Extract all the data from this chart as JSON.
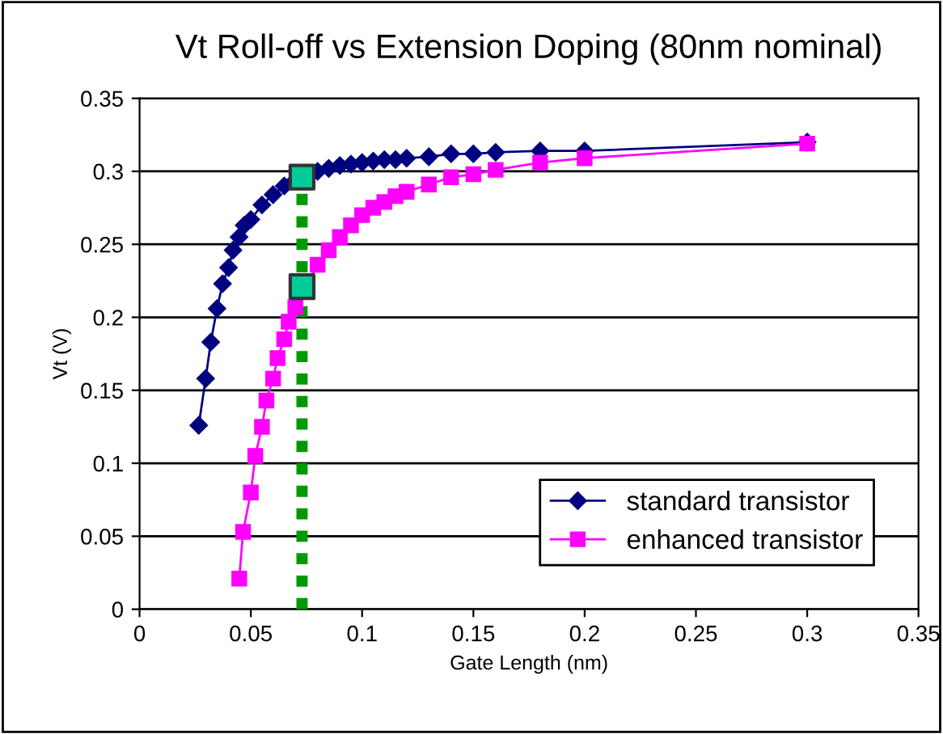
{
  "chart_data": {
    "type": "line",
    "title": "Vt Roll-off vs Extension Doping (80nm nominal)",
    "xlabel": "Gate Length (nm)",
    "ylabel": "Vt (V)",
    "xlim": [
      0,
      0.35
    ],
    "xticks": [
      0,
      0.05,
      0.1,
      0.15,
      0.2,
      0.25,
      0.3,
      0.35
    ],
    "ylim": [
      0,
      0.35
    ],
    "yticks": [
      0,
      0.05,
      0.1,
      0.15,
      0.2,
      0.25,
      0.3,
      0.35
    ],
    "grid": "y",
    "legend": "bottom right",
    "series": [
      {
        "name": "standard transistor",
        "color": "#000080",
        "marker": "diamond",
        "line_style": "solid",
        "x": [
          0.0266,
          0.0297,
          0.032,
          0.0348,
          0.0373,
          0.04,
          0.042,
          0.0447,
          0.047,
          0.05,
          0.055,
          0.06,
          0.065,
          0.07,
          0.075,
          0.08,
          0.085,
          0.09,
          0.095,
          0.1,
          0.105,
          0.11,
          0.115,
          0.12,
          0.13,
          0.14,
          0.15,
          0.16,
          0.18,
          0.2,
          0.3
        ],
        "values": [
          0.126,
          0.158,
          0.183,
          0.206,
          0.223,
          0.234,
          0.246,
          0.255,
          0.263,
          0.267,
          0.277,
          0.284,
          0.29,
          0.294,
          0.298,
          0.3,
          0.302,
          0.304,
          0.305,
          0.306,
          0.307,
          0.308,
          0.308,
          0.309,
          0.31,
          0.312,
          0.312,
          0.313,
          0.314,
          0.314,
          0.32
        ]
      },
      {
        "name": "enhanced transistor",
        "color": "#ff00ff",
        "marker": "square",
        "line_style": "solid",
        "x": [
          0.0448,
          0.0465,
          0.05,
          0.052,
          0.055,
          0.057,
          0.06,
          0.062,
          0.065,
          0.067,
          0.07,
          0.08,
          0.085,
          0.09,
          0.095,
          0.1,
          0.105,
          0.11,
          0.115,
          0.12,
          0.13,
          0.14,
          0.15,
          0.16,
          0.18,
          0.2,
          0.3
        ],
        "values": [
          0.021,
          0.053,
          0.08,
          0.105,
          0.125,
          0.143,
          0.158,
          0.172,
          0.185,
          0.197,
          0.207,
          0.236,
          0.246,
          0.255,
          0.263,
          0.27,
          0.275,
          0.279,
          0.283,
          0.286,
          0.291,
          0.296,
          0.298,
          0.301,
          0.306,
          0.309,
          0.319
        ]
      },
      {
        "type": "line",
        "color": "#009900",
        "marker": "none",
        "line_style": "dotted",
        "x": [
          0.073,
          0.073
        ],
        "values": [
          0,
          0.296
        ]
      },
      {
        "type": "scatter",
        "color": "#00cc99",
        "marker": "square",
        "x": [
          0.073,
          0.073
        ],
        "values": [
          0.296,
          0.221
        ]
      }
    ]
  }
}
